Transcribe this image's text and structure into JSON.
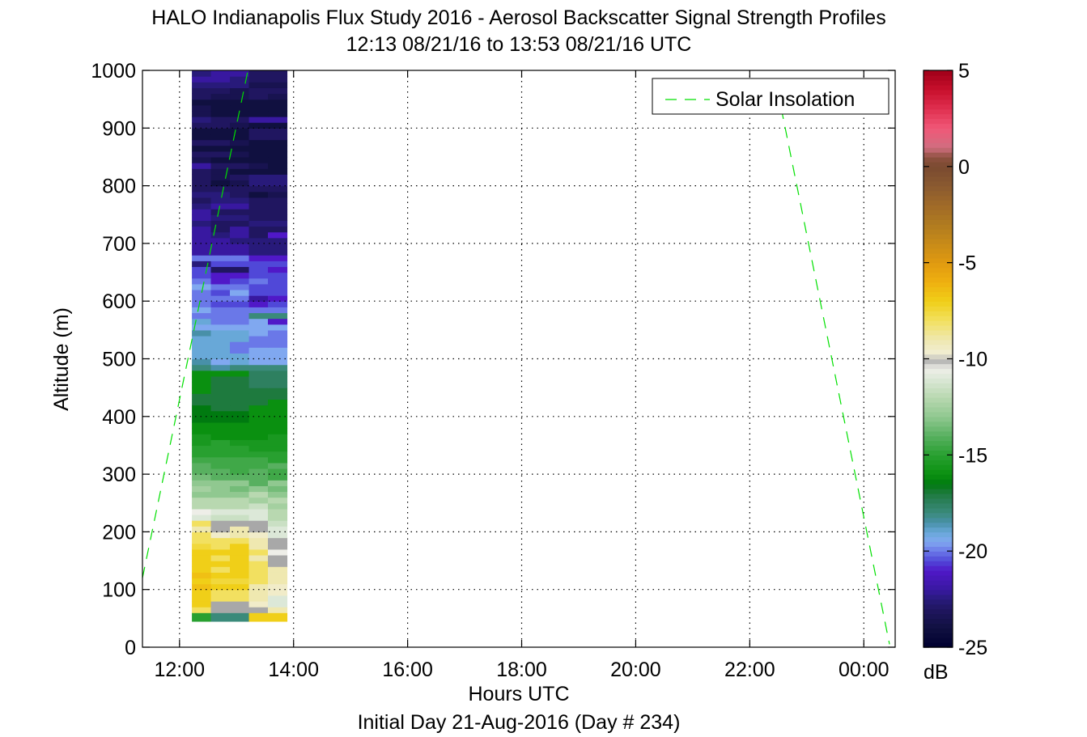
{
  "chart_data": {
    "type": "heatmap",
    "title": "HALO Indianapolis Flux Study 2016 - Aerosol Backscatter Signal Strength Profiles",
    "subtitle": "12:13 08/21/16 to 13:53 08/21/16  UTC",
    "xlabel": "Hours UTC",
    "xlabel2": "Initial Day 21-Aug-2016 (Day # 234)",
    "ylabel": "Altitude (m)",
    "xlim": [
      11.35,
      24.55
    ],
    "ylim": [
      0,
      1000
    ],
    "x_ticks": [
      12,
      14,
      16,
      18,
      20,
      22,
      24
    ],
    "x_tick_labels": [
      "12:00",
      "14:00",
      "16:00",
      "18:00",
      "20:00",
      "22:00",
      "00:00"
    ],
    "y_ticks": [
      0,
      100,
      200,
      300,
      400,
      500,
      600,
      700,
      800,
      900,
      1000
    ],
    "y_tick_labels": [
      "0",
      "100",
      "200",
      "300",
      "400",
      "500",
      "600",
      "700",
      "800",
      "900",
      "1000"
    ],
    "grid": true,
    "legend": {
      "placement": "top-right",
      "entries": [
        "Solar Insolation"
      ]
    },
    "colorbar": {
      "label": "dB",
      "range": [
        -25,
        5
      ],
      "ticks": [
        5,
        0,
        -5,
        -10,
        -15,
        -20,
        -25
      ],
      "tick_labels": [
        "5",
        "0",
        "-5",
        "-10",
        "-15",
        "-20",
        "-25"
      ]
    },
    "heatmap": {
      "columns_start_hours": [
        12.217,
        12.55,
        12.883,
        13.217,
        13.55
      ],
      "column_width_hours": 0.333,
      "rows_start_m": [
        45,
        60,
        70,
        80,
        90,
        100,
        110,
        120,
        130,
        140,
        150,
        160,
        170,
        180,
        190,
        200,
        210,
        220,
        230,
        240,
        250,
        260,
        270,
        280,
        290,
        300,
        310,
        320,
        330,
        340,
        350,
        360,
        370,
        380,
        390,
        400,
        410,
        420,
        430,
        440,
        450,
        460,
        470,
        480,
        490,
        500,
        510,
        520,
        530,
        540,
        550,
        560,
        570,
        580,
        590,
        600,
        610,
        620,
        630,
        640,
        650,
        660,
        670,
        680,
        690,
        700,
        710,
        720,
        730,
        740,
        750,
        760,
        770,
        780,
        790,
        800,
        810,
        820,
        830,
        840,
        850,
        860,
        870,
        880,
        890,
        900,
        910,
        920,
        930,
        940,
        950,
        960,
        970,
        980,
        990
      ],
      "values_db": [
        [
          -15,
          -18,
          -18,
          -7,
          -7
        ],
        [
          -8,
          -10,
          -10,
          -10,
          -9
        ],
        [
          -7,
          -10,
          -10,
          -9.5,
          -11
        ],
        [
          -7,
          -8,
          -8,
          -9,
          -11
        ],
        [
          -7,
          -8,
          -8,
          -9,
          -9.5
        ],
        [
          -6.5,
          -7,
          -7,
          -9,
          -9.5
        ],
        [
          -7,
          -7.5,
          -7.5,
          -8,
          -9
        ],
        [
          -6.5,
          -7,
          -7,
          -8,
          -9
        ],
        [
          -7,
          -8,
          -7,
          -8,
          -9
        ],
        [
          -7,
          -7,
          -7,
          -8,
          -10
        ],
        [
          -7,
          -8,
          -7,
          -9,
          -10
        ],
        [
          -7,
          -7,
          -7,
          -8,
          -10.5
        ],
        [
          -7.5,
          -8,
          -7,
          -9,
          -10
        ],
        [
          -8,
          -8,
          -8,
          -9,
          -10
        ],
        [
          -8,
          -9.5,
          -9,
          -9.5,
          -11
        ],
        [
          -9,
          -10,
          -9,
          -10,
          -11
        ],
        [
          -8,
          -10,
          -10,
          -10,
          -11.5
        ],
        [
          -11,
          -11.5,
          -11.5,
          -11,
          -12
        ],
        [
          -10.5,
          -11,
          -11,
          -11,
          -12
        ],
        [
          -12,
          -12,
          -12,
          -11.5,
          -12.5
        ],
        [
          -12,
          -12,
          -12,
          -12.5,
          -12
        ],
        [
          -13,
          -13,
          -13,
          -12,
          -13
        ],
        [
          -12.5,
          -13,
          -13.5,
          -13,
          -13.5
        ],
        [
          -13,
          -13,
          -13,
          -14,
          -13
        ],
        [
          -13.5,
          -14,
          -14,
          -14,
          -14.5
        ],
        [
          -14,
          -14,
          -14.5,
          -14,
          -14.5
        ],
        [
          -14,
          -14.5,
          -14.5,
          -14.5,
          -14
        ],
        [
          -14.5,
          -14.5,
          -14.5,
          -14.5,
          -15
        ],
        [
          -15,
          -15,
          -15,
          -15,
          -15
        ],
        [
          -15,
          -15,
          -15,
          -15.5,
          -15.5
        ],
        [
          -15.5,
          -15,
          -15.5,
          -15.5,
          -15.5
        ],
        [
          -15.5,
          -16,
          -16,
          -16,
          -15.5
        ],
        [
          -16,
          -16,
          -16,
          -16,
          -16
        ],
        [
          -16,
          -16,
          -16,
          -16,
          -16
        ],
        [
          -16.5,
          -16.5,
          -16.5,
          -16,
          -16
        ],
        [
          -16.5,
          -16.5,
          -16.5,
          -16,
          -16
        ],
        [
          -16.5,
          -17,
          -17,
          -16,
          -16
        ],
        [
          -17,
          -17,
          -17,
          -17,
          -16
        ],
        [
          -17,
          -17,
          -17,
          -17,
          -17
        ],
        [
          -16,
          -17,
          -17,
          -17,
          -17
        ],
        [
          -16,
          -17,
          -17,
          -17.5,
          -17.5
        ],
        [
          -16,
          -17,
          -17,
          -17.5,
          -17.5
        ],
        [
          -16,
          -16,
          -16,
          -17.5,
          -17.5
        ],
        [
          -18,
          -18.5,
          -18,
          -18,
          -18
        ],
        [
          -18.5,
          -19.5,
          -19,
          -19.5,
          -19.5
        ],
        [
          -19,
          -19,
          -19,
          -19.5,
          -19.5
        ],
        [
          -19,
          -19,
          -20,
          -19.5,
          -19.5
        ],
        [
          -19,
          -19,
          -20,
          -20,
          -20
        ],
        [
          -19,
          -19,
          -19,
          -20,
          -20
        ],
        [
          -18.5,
          -19,
          -19,
          -19.5,
          -20
        ],
        [
          -19.5,
          -19.5,
          -19.5,
          -19.5,
          -19.5
        ],
        [
          -19,
          -20,
          -20,
          -19.5,
          -21
        ],
        [
          -20,
          -20,
          -20,
          -18,
          -18
        ],
        [
          -19.5,
          -20,
          -20,
          -20,
          -20
        ],
        [
          -20,
          -20.5,
          -20.5,
          -21,
          -20.5
        ],
        [
          -20,
          -20,
          -20,
          -22,
          -21
        ],
        [
          -20,
          -20.5,
          -19.5,
          -20.5,
          -20.5
        ],
        [
          -19.5,
          -20,
          -20,
          -20.5,
          -20.5
        ],
        [
          -20,
          -21,
          -20.5,
          -20,
          -20.5
        ],
        [
          -20.5,
          -21,
          -21,
          -20.5,
          -20.5
        ],
        [
          -20.5,
          -23,
          -23,
          -20.5,
          -21
        ],
        [
          -22.5,
          -20.5,
          -20.5,
          -20.5,
          -20.5
        ],
        [
          -20,
          -20,
          -20,
          -21,
          -21
        ],
        [
          -22,
          -22,
          -22,
          -22.5,
          -22.5
        ],
        [
          -22,
          -22,
          -22,
          -22.5,
          -22.5
        ],
        [
          -22,
          -22,
          -22.5,
          -22.5,
          -22.5
        ],
        [
          -22,
          -22.5,
          -22,
          -23,
          -21
        ],
        [
          -22,
          -23,
          -22,
          -23,
          -23
        ],
        [
          -22.5,
          -23,
          -23,
          -22.5,
          -22.5
        ],
        [
          -22,
          -22.5,
          -22.5,
          -23,
          -23
        ],
        [
          -22,
          -23,
          -23,
          -23,
          -23
        ],
        [
          -22.5,
          -22,
          -22,
          -23,
          -23
        ],
        [
          -23,
          -22.5,
          -22.5,
          -23,
          -23
        ],
        [
          -22.5,
          -22.5,
          -23,
          -24,
          -23.5
        ],
        [
          -23,
          -23,
          -23,
          -23,
          -23
        ],
        [
          -23,
          -24,
          -23.5,
          -22.5,
          -22.5
        ],
        [
          -23,
          -23.5,
          -23,
          -22.5,
          -22.5
        ],
        [
          -23,
          -23.5,
          -24,
          -24,
          -24
        ],
        [
          -22,
          -23,
          -23,
          -23.5,
          -24
        ],
        [
          -23.5,
          -24,
          -24,
          -24,
          -24
        ],
        [
          -23,
          -23,
          -23.5,
          -24,
          -24
        ],
        [
          -24,
          -24,
          -24,
          -24,
          -24
        ],
        [
          -23,
          -23,
          -23.5,
          -24,
          -24
        ],
        [
          -24,
          -24,
          -24,
          -23,
          -23
        ],
        [
          -24,
          -24,
          -24,
          -23,
          -23
        ],
        [
          -23,
          -23,
          -23.5,
          -24,
          -24
        ],
        [
          -22.5,
          -23,
          -23,
          -22,
          -22
        ],
        [
          -23.5,
          -24,
          -24,
          -24,
          -24
        ],
        [
          -23.5,
          -24,
          -24,
          -24,
          -24
        ],
        [
          -24,
          -24,
          -24,
          -24,
          -24
        ],
        [
          -23,
          -23.5,
          -23.5,
          -23,
          -23.5
        ],
        [
          -23,
          -23,
          -23.5,
          -23,
          -23
        ],
        [
          -22.5,
          -22.5,
          -22.5,
          -23.5,
          -23.5
        ],
        [
          -22,
          -22,
          -22.5,
          -23,
          -23
        ],
        [
          -22.5,
          -22,
          -22,
          -23,
          -23
        ]
      ]
    },
    "series": [
      {
        "name": "Solar Insolation",
        "style": "dashed",
        "color": "#00e000",
        "segments": [
          {
            "x": [
              11.35,
              13.2
            ],
            "y": [
              120,
              1000
            ]
          },
          {
            "x": [
              22.55,
              24.45
            ],
            "y": [
              935,
              5
            ]
          }
        ]
      }
    ],
    "colormap": [
      [
        5,
        "#a00018"
      ],
      [
        4,
        "#c8102c"
      ],
      [
        3,
        "#e03050"
      ],
      [
        2,
        "#f05878"
      ],
      [
        1,
        "#d06e80"
      ],
      [
        0.5,
        "#8e5040"
      ],
      [
        0,
        "#7a4a30"
      ],
      [
        -1,
        "#8a5a30"
      ],
      [
        -2,
        "#a06a28"
      ],
      [
        -3,
        "#b07b20"
      ],
      [
        -4,
        "#c88b18"
      ],
      [
        -5,
        "#e09a10"
      ],
      [
        -6,
        "#efb010"
      ],
      [
        -7,
        "#f0cf18"
      ],
      [
        -8,
        "#f2e060"
      ],
      [
        -9,
        "#efe8b0"
      ],
      [
        -9.8,
        "#f2efd8"
      ],
      [
        -10,
        "#a8a8a8"
      ],
      [
        -10.5,
        "#eeeee8"
      ],
      [
        -11,
        "#dce8d8"
      ],
      [
        -12,
        "#b8d8b0"
      ],
      [
        -13,
        "#90c890"
      ],
      [
        -14,
        "#58b060"
      ],
      [
        -15,
        "#28a030"
      ],
      [
        -16,
        "#0a9010"
      ],
      [
        -16.5,
        "#007a10"
      ],
      [
        -17,
        "#1e7a3e"
      ],
      [
        -17.5,
        "#2e8060"
      ],
      [
        -18,
        "#3a8a7a"
      ],
      [
        -18.5,
        "#4890a8"
      ],
      [
        -19,
        "#68a8d8"
      ],
      [
        -19.5,
        "#80a8f0"
      ],
      [
        -20,
        "#6a78e8"
      ],
      [
        -20.5,
        "#5048d8"
      ],
      [
        -21,
        "#5018c8"
      ],
      [
        -22,
        "#3818a0"
      ],
      [
        -22.5,
        "#281a7a"
      ],
      [
        -23,
        "#201660"
      ],
      [
        -24,
        "#101040"
      ],
      [
        -25,
        "#000030"
      ]
    ]
  }
}
